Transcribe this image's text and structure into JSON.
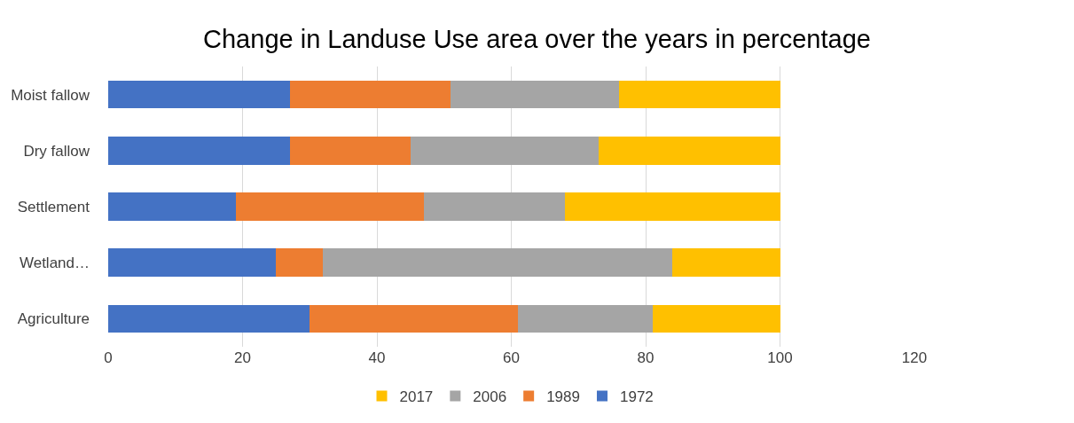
{
  "chart_data": {
    "type": "bar",
    "orientation": "horizontal",
    "stacked": true,
    "title": "Change in Landuse Use area over the years in percentage",
    "categories": [
      "Moist fallow",
      "Dry fallow",
      "Settlement",
      "Wetland…",
      "Agriculture"
    ],
    "series": [
      {
        "name": "1972",
        "color": "#4472c4",
        "values": [
          27,
          27,
          19,
          25,
          30
        ]
      },
      {
        "name": "1989",
        "color": "#ed7d31",
        "values": [
          24,
          18,
          28,
          7,
          31
        ]
      },
      {
        "name": "2006",
        "color": "#a5a5a5",
        "values": [
          25,
          28,
          21,
          52,
          20
        ]
      },
      {
        "name": "2017",
        "color": "#ffc000",
        "values": [
          24,
          27,
          32,
          16,
          19
        ]
      }
    ],
    "xlim": [
      0,
      120
    ],
    "xticks": [
      0,
      20,
      40,
      60,
      80,
      100,
      120
    ],
    "grid": "x",
    "legend": "bottom"
  }
}
